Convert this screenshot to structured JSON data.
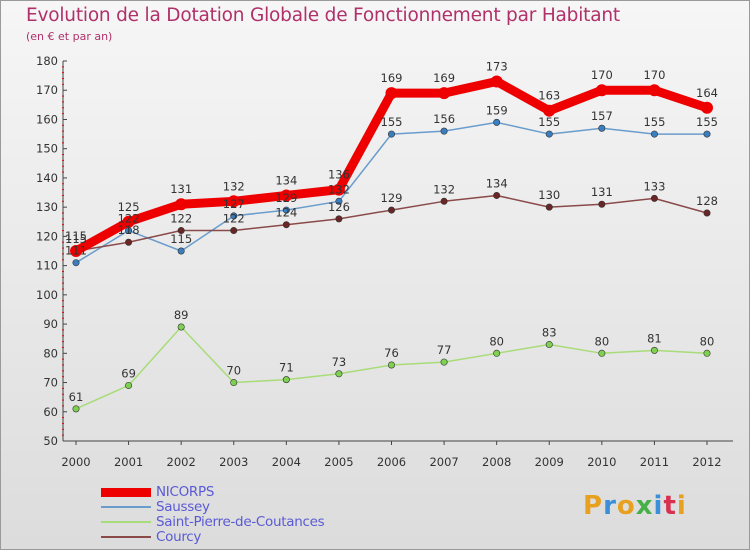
{
  "title": "Evolution de la Dotation Globale de Fonctionnement par Habitant",
  "subtitle": "(en € et par an)",
  "logo": {
    "text": "Proxiti",
    "colors": [
      "#e8a020",
      "#3a8fd8",
      "#e8a020",
      "#48b048",
      "#3a8fd8",
      "#d83050",
      "#e8a020"
    ]
  },
  "chart_data": {
    "type": "line",
    "title": "Evolution de la Dotation Globale de Fonctionnement par Habitant",
    "subtitle": "(en € et par an)",
    "xlabel": "",
    "ylabel": "",
    "x": [
      "2000",
      "2001",
      "2002",
      "2003",
      "2004",
      "2005",
      "2006",
      "2007",
      "2008",
      "2009",
      "2010",
      "2011",
      "2012"
    ],
    "ylim": [
      50,
      180
    ],
    "yticks": [
      50,
      60,
      70,
      80,
      90,
      100,
      110,
      120,
      130,
      140,
      150,
      160,
      170,
      180
    ],
    "grid": false,
    "legend_position": "bottom-left",
    "series": [
      {
        "name": "NICORPS",
        "color": "#ee0000",
        "marker": "#ee0000",
        "width": "thick",
        "values": [
          115,
          125,
          131,
          132,
          134,
          136,
          169,
          169,
          173,
          163,
          170,
          170,
          164
        ]
      },
      {
        "name": "Saussey",
        "color": "#6a9ccc",
        "marker": "#3a7ec0",
        "width": "thin",
        "values": [
          111,
          122,
          115,
          127,
          129,
          132,
          155,
          156,
          159,
          155,
          157,
          155,
          155
        ]
      },
      {
        "name": "Saint-Pierre-de-Coutances",
        "color": "#a8dc78",
        "marker": "#7ed050",
        "width": "thin",
        "values": [
          61,
          69,
          89,
          70,
          71,
          73,
          76,
          77,
          80,
          83,
          80,
          81,
          80
        ]
      },
      {
        "name": "Courcy",
        "color": "#8a4a4a",
        "marker": "#6a2626",
        "width": "thin",
        "values": [
          115,
          118,
          122,
          122,
          124,
          126,
          129,
          132,
          134,
          130,
          131,
          133,
          128
        ]
      }
    ]
  }
}
